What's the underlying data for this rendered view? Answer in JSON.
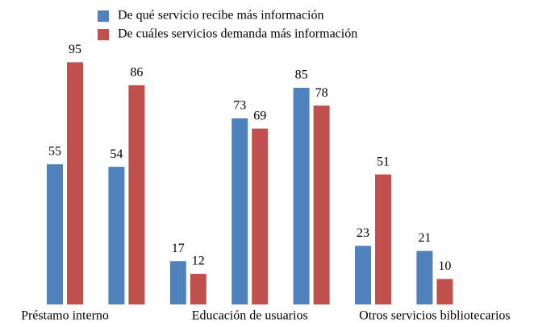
{
  "chart_data": {
    "type": "bar",
    "categories": [
      "Préstamo interno",
      null,
      null,
      "Educación de usuarios",
      null,
      null,
      "Otros servicios bibliotecarios"
    ],
    "series": [
      {
        "name": "De qué servicio recibe más información",
        "color": "#4f81bd",
        "values": [
          55,
          54,
          17,
          73,
          85,
          23,
          21
        ]
      },
      {
        "name": "De cuáles servicios demanda más información",
        "color": "#c0504d",
        "values": [
          95,
          86,
          12,
          69,
          78,
          51,
          10
        ]
      }
    ]
  }
}
